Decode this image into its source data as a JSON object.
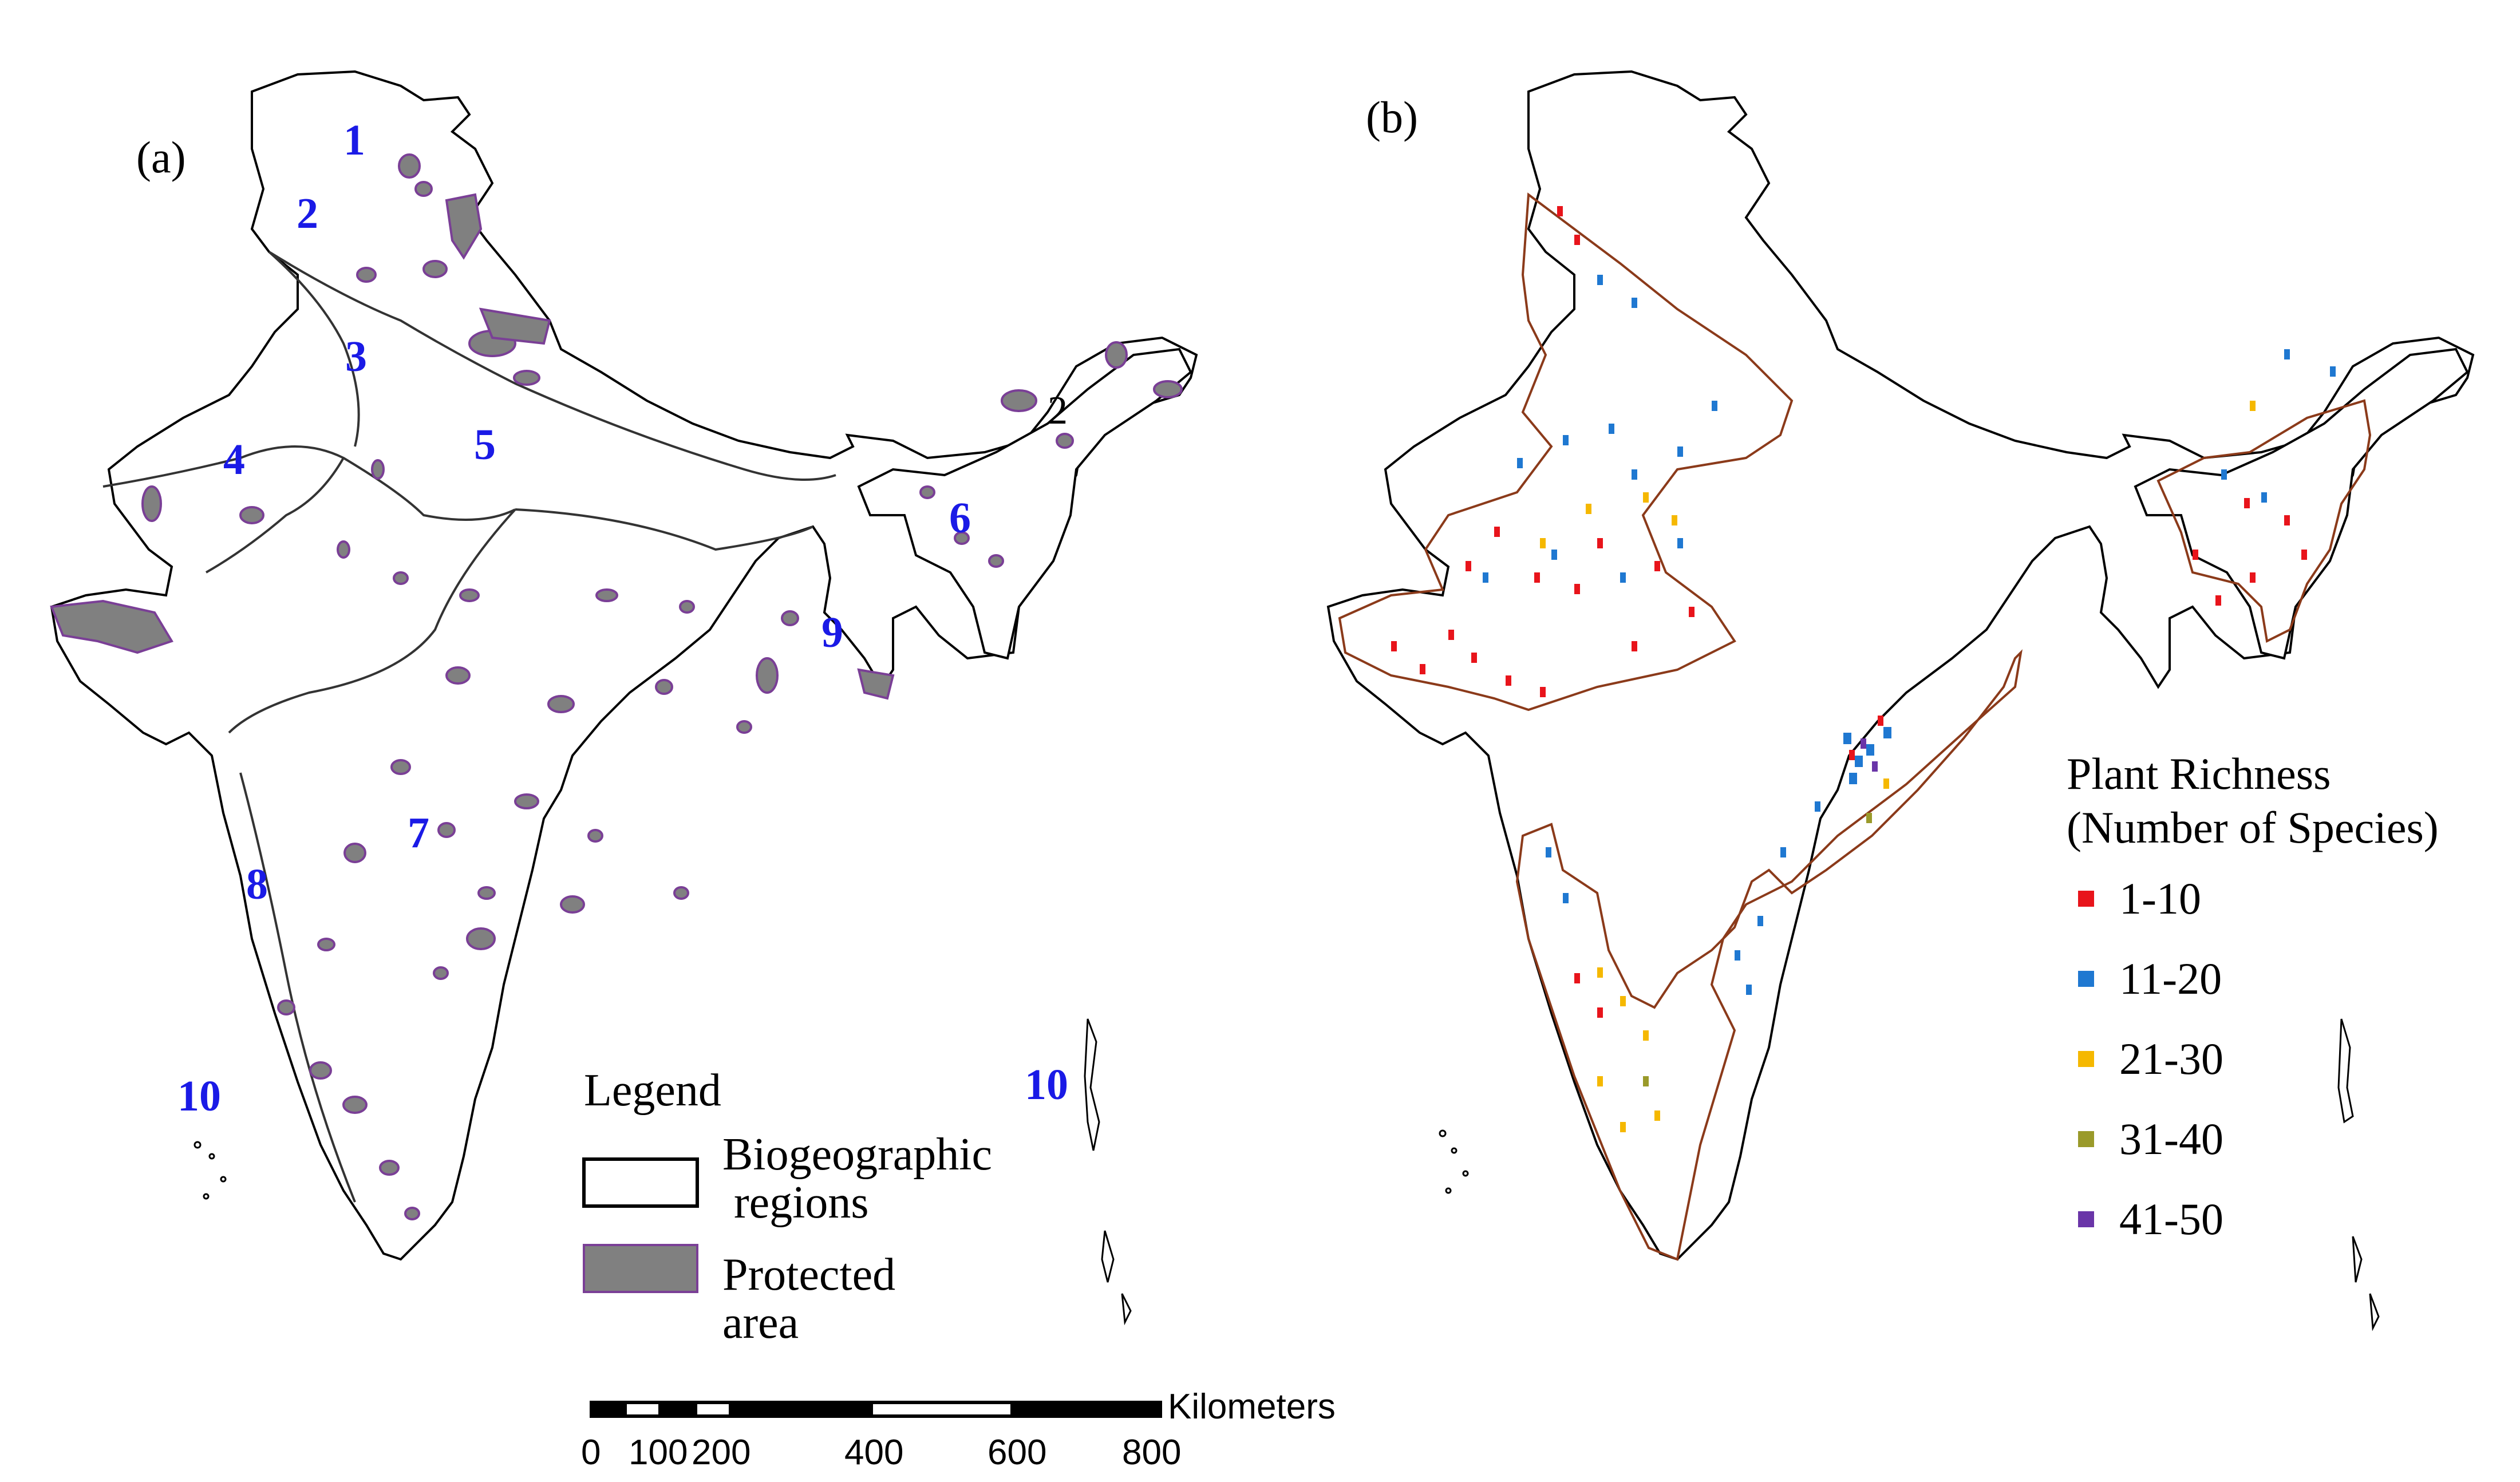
{
  "panels": {
    "a": {
      "label": "(a)"
    },
    "b": {
      "label": "(b)"
    }
  },
  "region_numbers": [
    "1",
    "2",
    "3",
    "4",
    "5",
    "6",
    "7",
    "8",
    "9",
    "10",
    "10"
  ],
  "region_number_black": "2",
  "legend": {
    "title": "Legend",
    "items": [
      {
        "label_line1": "Biogeographic",
        "label_line2": " regions",
        "fill": "#ffffff",
        "stroke": "#000000"
      },
      {
        "label_line1": "Protected",
        "label_line2": "area",
        "fill": "#808080",
        "stroke": "#7a3f96"
      }
    ]
  },
  "richness_legend": {
    "title_line1": "Plant Richness",
    "title_line2": "(Number of Species)",
    "classes": [
      {
        "label": "1-10",
        "color": "#e8141b"
      },
      {
        "label": "11-20",
        "color": "#1f78d1"
      },
      {
        "label": "21-30",
        "color": "#f5b800"
      },
      {
        "label": "31-40",
        "color": "#9a9a2a"
      },
      {
        "label": "41-50",
        "color": "#6a35a8"
      }
    ]
  },
  "scale_bar": {
    "unit": "Kilometers",
    "ticks": [
      "0",
      "100",
      "200",
      "400",
      "600",
      "800"
    ]
  },
  "colors": {
    "region_number": "#1a1ae6",
    "protected_fill": "#808080",
    "protected_outline": "#7a3f96",
    "richness_boundary": "#8b3a1a"
  }
}
